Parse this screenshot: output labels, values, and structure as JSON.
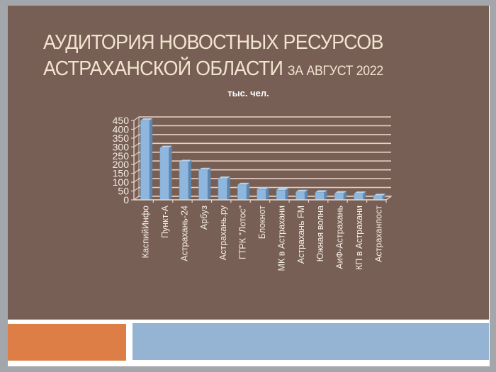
{
  "slide": {
    "title_line1": "АУДИТОРИЯ НОВОСТНЫХ РЕСУРСОВ",
    "title_line2_main": "АСТРАХАНСКОЙ ОБЛАСТИ",
    "title_line2_sub": "ЗА АВГУСТ 2022",
    "unit_label": "тыс. чел."
  },
  "colors": {
    "background": "#775f55",
    "title_text": "#f2e4cf",
    "bar_fill": "#8fb6dc",
    "bar_side": "#5d87b0",
    "gridline": "#e8d2c4",
    "footer_orange": "#dc7e45",
    "footer_blue": "#95b4d3"
  },
  "chart_data": {
    "type": "bar",
    "title": "тыс. чел.",
    "xlabel": "",
    "ylabel": "",
    "ylim": [
      0,
      450
    ],
    "yticks": [
      0,
      50,
      100,
      150,
      200,
      250,
      300,
      350,
      400,
      450
    ],
    "grid": true,
    "legend": "none",
    "style": "3d-column",
    "categories": [
      "КаспийИнфо",
      "Пункт-А",
      "Астрахань-24",
      "Арбуз",
      "Астрахань.ру",
      "ГТРК \"Лотос\"",
      "Блокнот",
      "МК в Астрахани",
      "Астрахань FM",
      "Южная волна",
      "АиФ-Астрахань",
      "КП в Астрахани",
      "Астраханпост"
    ],
    "values": [
      450,
      295,
      215,
      170,
      120,
      85,
      60,
      55,
      45,
      42,
      37,
      35,
      22
    ]
  }
}
